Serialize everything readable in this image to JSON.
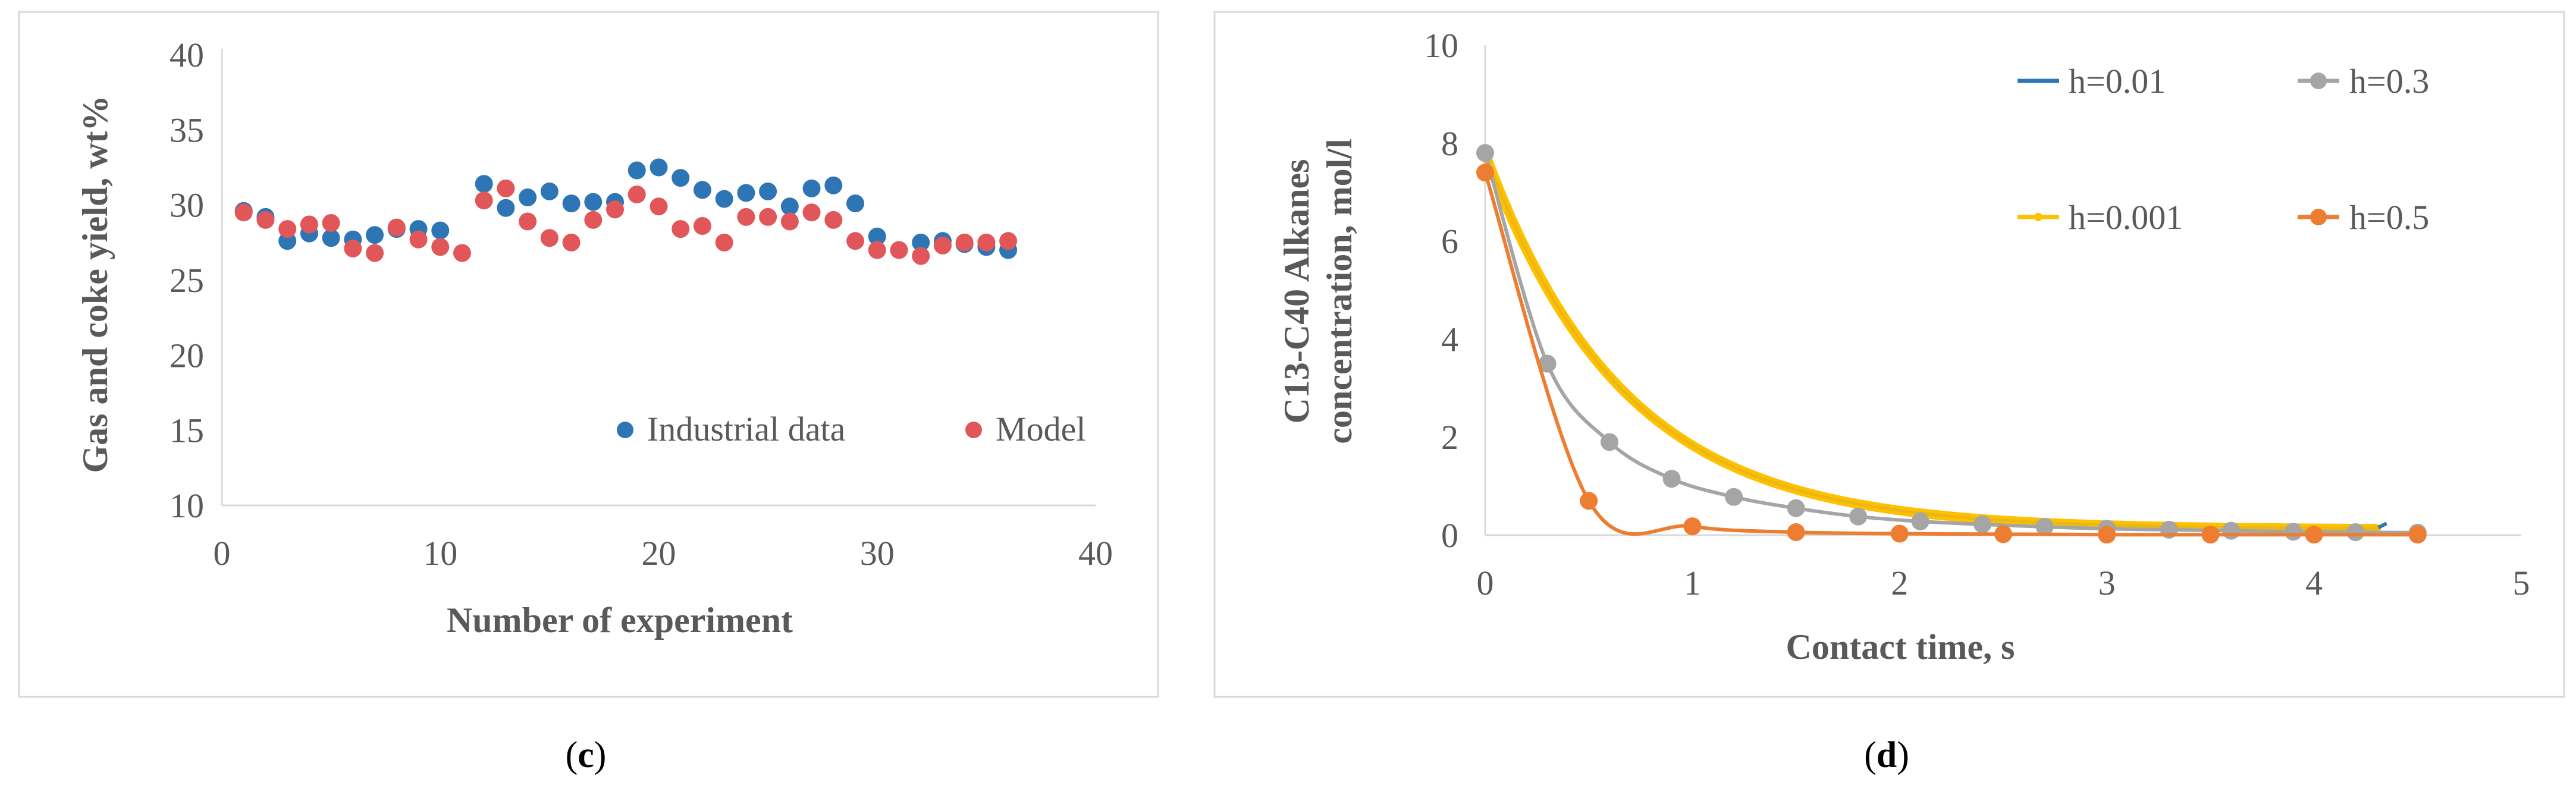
{
  "panels": [
    {
      "label_open": "(",
      "label_letter": "c",
      "label_close": ")"
    },
    {
      "label_open": "(",
      "label_letter": "d",
      "label_close": ")"
    }
  ],
  "chart_data": [
    {
      "type": "scatter",
      "xlabel": "Number of experiment",
      "ylabel": "Gas and coke yield, wt%",
      "xlim": [
        0,
        40
      ],
      "ylim": [
        10,
        40
      ],
      "xticks": [
        0,
        10,
        20,
        30,
        40
      ],
      "yticks": [
        10,
        15,
        20,
        25,
        30,
        35,
        40
      ],
      "grid": false,
      "legend": "bottom-right",
      "series": [
        {
          "name": "Industrial data",
          "color": "#2E75B6",
          "x": [
            1,
            2,
            3,
            4,
            5,
            6,
            7,
            8,
            9,
            10,
            12,
            13,
            14,
            15,
            16,
            17,
            18,
            19,
            20,
            21,
            22,
            23,
            24,
            25,
            26,
            27,
            28,
            29,
            30,
            32,
            33,
            34,
            35,
            36
          ],
          "y": [
            29.6,
            29.2,
            27.6,
            28.1,
            27.8,
            27.7,
            28.0,
            28.4,
            28.4,
            28.3,
            31.4,
            29.8,
            30.5,
            30.9,
            30.1,
            30.2,
            30.2,
            32.3,
            32.5,
            31.8,
            31.0,
            30.4,
            30.8,
            30.9,
            29.9,
            31.1,
            31.3,
            30.1,
            27.9,
            27.5,
            27.6,
            27.4,
            27.2,
            27.0
          ]
        },
        {
          "name": "Model",
          "color": "#E15759",
          "x": [
            1,
            2,
            3,
            4,
            5,
            6,
            7,
            8,
            9,
            10,
            11,
            12,
            13,
            14,
            15,
            16,
            17,
            18,
            19,
            20,
            21,
            22,
            23,
            24,
            25,
            26,
            27,
            28,
            29,
            30,
            31,
            32,
            33,
            34,
            35,
            36
          ],
          "y": [
            29.5,
            29.0,
            28.4,
            28.7,
            28.8,
            27.1,
            26.8,
            28.5,
            27.7,
            27.2,
            26.8,
            30.3,
            31.1,
            28.9,
            27.8,
            27.5,
            29.0,
            29.7,
            30.7,
            29.9,
            28.4,
            28.6,
            27.5,
            29.2,
            29.2,
            28.9,
            29.5,
            29.0,
            27.6,
            27.0,
            27.0,
            26.6,
            27.3,
            27.5,
            27.5,
            27.6
          ]
        }
      ]
    },
    {
      "type": "line",
      "xlabel": "Contact time, s",
      "ylabel_line1": "C13-C40 Alkanes",
      "ylabel_line2": "concentration,  mol/l",
      "xlim": [
        0,
        5
      ],
      "ylim": [
        0,
        10
      ],
      "xticks": [
        0,
        1,
        2,
        3,
        4,
        5
      ],
      "yticks": [
        0,
        2,
        4,
        6,
        8,
        10
      ],
      "grid": false,
      "legend": "top-right",
      "series": [
        {
          "name": "h=0.01",
          "color": "#2E75B6",
          "x_step": 0.01,
          "x_start": 0,
          "x_end": 4.3,
          "y_start": 7.8,
          "decay_rate": 1.5,
          "y_floor": 0.12,
          "marker": "none"
        },
        {
          "name": "h=0.3",
          "color": "#A5A5A5",
          "x": [
            0,
            0.3,
            0.6,
            0.9,
            1.2,
            1.5,
            1.8,
            2.1,
            2.4,
            2.7,
            3.0,
            3.3,
            3.6,
            3.9,
            4.2,
            4.5
          ],
          "y": [
            7.8,
            3.5,
            1.9,
            1.15,
            0.78,
            0.55,
            0.38,
            0.28,
            0.22,
            0.17,
            0.13,
            0.11,
            0.09,
            0.07,
            0.06,
            0.05
          ],
          "marker": "circle"
        },
        {
          "name": "h=0.001",
          "color": "#FFC000",
          "x_step": 0.001,
          "x_start": 0,
          "x_end": 4.3,
          "y_start": 7.8,
          "decay_rate": 1.5,
          "y_floor": 0.12,
          "marker": "dense"
        },
        {
          "name": "h=0.5",
          "color": "#ED7D31",
          "x": [
            0,
            0.5,
            1.0,
            1.5,
            2.0,
            2.5,
            3.0,
            3.5,
            4.0,
            4.5
          ],
          "y": [
            7.4,
            0.7,
            0.18,
            0.06,
            0.03,
            0.02,
            0.01,
            0.01,
            0.01,
            0.01
          ],
          "marker": "circle"
        }
      ]
    }
  ]
}
